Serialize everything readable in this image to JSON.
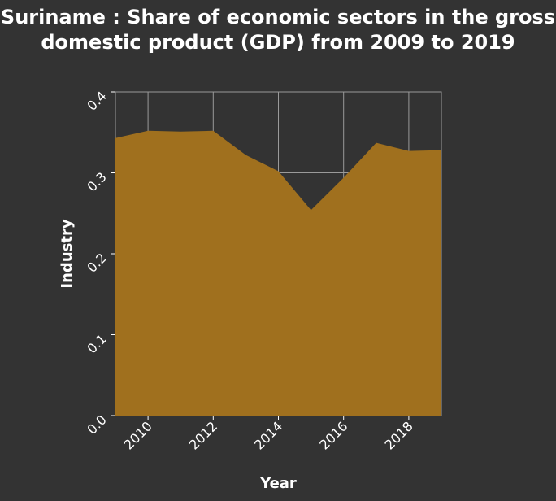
{
  "chart_data": {
    "type": "area",
    "title": "Suriname : Share of economic sectors in the gross domestic product (GDP) from 2009 to 2019",
    "xlabel": "Year",
    "ylabel": "Industry",
    "xlim": [
      2009,
      2019
    ],
    "ylim": [
      0,
      0.4
    ],
    "x_ticks": [
      2010,
      2012,
      2014,
      2016,
      2018
    ],
    "y_ticks": [
      0.0,
      0.1,
      0.2,
      0.3,
      0.4
    ],
    "y_tick_labels": [
      "0.0",
      "0.1",
      "0.2",
      "0.3",
      "0.4"
    ],
    "grid": true,
    "fill_color": "#a0701e",
    "background_color": "#333333",
    "series": [
      {
        "x": [
          2009,
          2010,
          2011,
          2012,
          2013,
          2014,
          2015,
          2016,
          2017,
          2018,
          2019
        ],
        "values": [
          0.343,
          0.352,
          0.351,
          0.352,
          0.322,
          0.302,
          0.254,
          0.294,
          0.337,
          0.327,
          0.328
        ]
      }
    ]
  }
}
